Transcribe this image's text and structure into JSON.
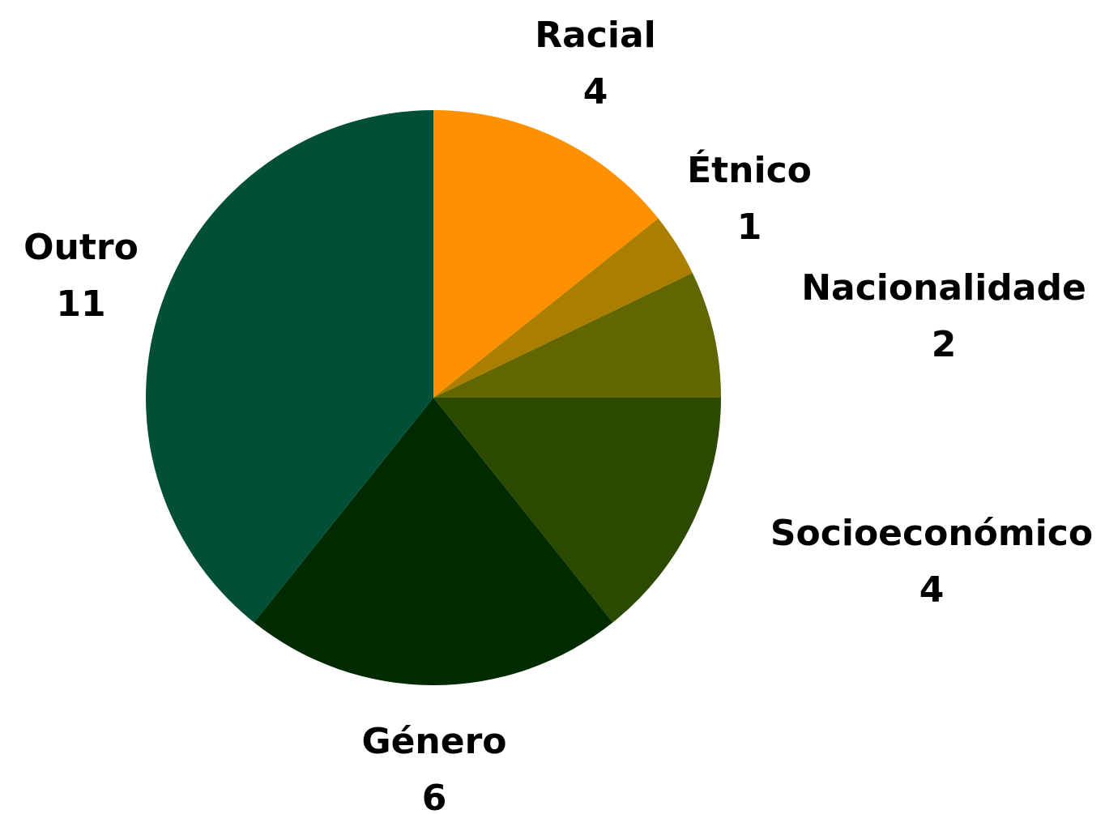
{
  "chart_data": {
    "type": "pie",
    "title": "",
    "legend": "none",
    "slices": [
      {
        "label": "Racial",
        "value": 4,
        "color": "#FF9000"
      },
      {
        "label": "Étnico",
        "value": 1,
        "color": "#AA7F00"
      },
      {
        "label": "Nacionalidade",
        "value": 2,
        "color": "#626600"
      },
      {
        "label": "Socioeconómico",
        "value": 4,
        "color": "#2B4A00"
      },
      {
        "label": "Género",
        "value": 6,
        "color": "#002A00"
      },
      {
        "label": "Outro",
        "value": 11,
        "color": "#004F36"
      }
    ]
  }
}
